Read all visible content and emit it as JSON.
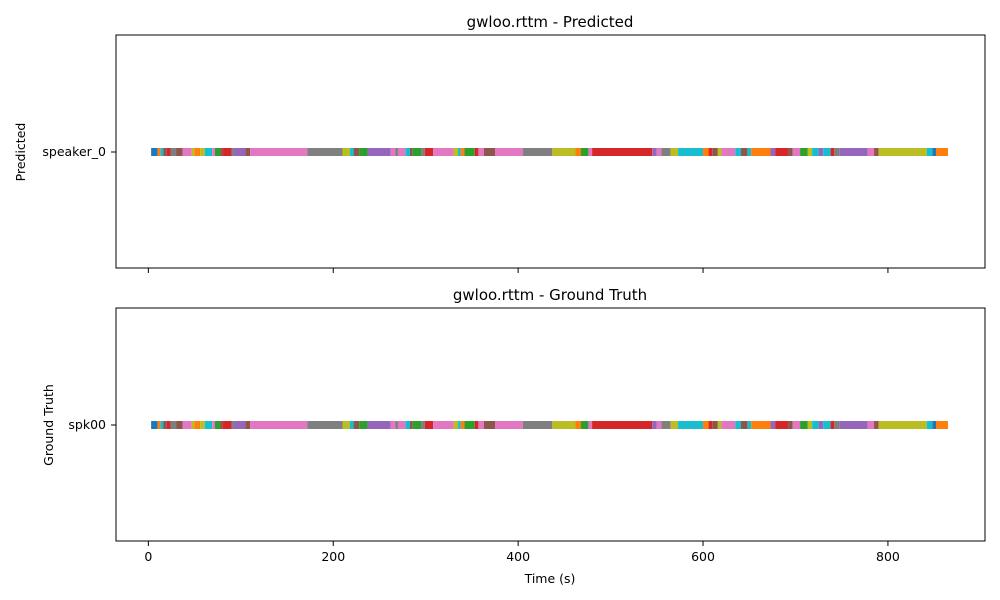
{
  "palette": [
    "#1f77b4",
    "#ff7f0e",
    "#2ca02c",
    "#d62728",
    "#9467bd",
    "#8c564b",
    "#e377c2",
    "#7f7f7f",
    "#bcbd22",
    "#17becf"
  ],
  "chart_data": [
    {
      "type": "timeline",
      "title": "gwloo.rttm - Predicted",
      "ylabel": "Predicted",
      "xlabel": "",
      "xlim": [
        -35,
        905
      ],
      "xticks": [
        0,
        200,
        400,
        600,
        800
      ],
      "show_xtick_labels": false,
      "speaker": "speaker_0",
      "segments": [
        {
          "start": 3,
          "end": 10,
          "color": "#1f77b4"
        },
        {
          "start": 10,
          "end": 13,
          "color": "#ff7f0e"
        },
        {
          "start": 13,
          "end": 16,
          "color": "#17becf"
        },
        {
          "start": 16,
          "end": 20,
          "color": "#8c564b"
        },
        {
          "start": 20,
          "end": 24,
          "color": "#d62728"
        },
        {
          "start": 24,
          "end": 30,
          "color": "#7f7f7f"
        },
        {
          "start": 30,
          "end": 37,
          "color": "#8c564b"
        },
        {
          "start": 37,
          "end": 47,
          "color": "#e377c2"
        },
        {
          "start": 47,
          "end": 50,
          "color": "#bcbd22"
        },
        {
          "start": 50,
          "end": 56,
          "color": "#ff7f0e"
        },
        {
          "start": 56,
          "end": 61,
          "color": "#bcbd22"
        },
        {
          "start": 61,
          "end": 69,
          "color": "#17becf"
        },
        {
          "start": 69,
          "end": 72,
          "color": "#e377c2"
        },
        {
          "start": 72,
          "end": 78,
          "color": "#2ca02c"
        },
        {
          "start": 78,
          "end": 80,
          "color": "#8c564b"
        },
        {
          "start": 80,
          "end": 90,
          "color": "#d62728"
        },
        {
          "start": 90,
          "end": 92,
          "color": "#7f7f7f"
        },
        {
          "start": 92,
          "end": 105,
          "color": "#9467bd"
        },
        {
          "start": 105,
          "end": 110,
          "color": "#8c564b"
        },
        {
          "start": 110,
          "end": 172,
          "color": "#e377c2"
        },
        {
          "start": 172,
          "end": 210,
          "color": "#7f7f7f"
        },
        {
          "start": 210,
          "end": 218,
          "color": "#bcbd22"
        },
        {
          "start": 218,
          "end": 222,
          "color": "#17becf"
        },
        {
          "start": 222,
          "end": 228,
          "color": "#8c564b"
        },
        {
          "start": 228,
          "end": 237,
          "color": "#2ca02c"
        },
        {
          "start": 237,
          "end": 262,
          "color": "#9467bd"
        },
        {
          "start": 262,
          "end": 267,
          "color": "#e377c2"
        },
        {
          "start": 267,
          "end": 270,
          "color": "#7f7f7f"
        },
        {
          "start": 270,
          "end": 278,
          "color": "#e377c2"
        },
        {
          "start": 278,
          "end": 283,
          "color": "#17becf"
        },
        {
          "start": 283,
          "end": 286,
          "color": "#8c564b"
        },
        {
          "start": 286,
          "end": 295,
          "color": "#2ca02c"
        },
        {
          "start": 295,
          "end": 299,
          "color": "#7f7f7f"
        },
        {
          "start": 299,
          "end": 308,
          "color": "#d62728"
        },
        {
          "start": 308,
          "end": 330,
          "color": "#e377c2"
        },
        {
          "start": 330,
          "end": 335,
          "color": "#bcbd22"
        },
        {
          "start": 335,
          "end": 338,
          "color": "#17becf"
        },
        {
          "start": 338,
          "end": 342,
          "color": "#ff7f0e"
        },
        {
          "start": 342,
          "end": 353,
          "color": "#2ca02c"
        },
        {
          "start": 353,
          "end": 357,
          "color": "#d62728"
        },
        {
          "start": 357,
          "end": 363,
          "color": "#e377c2"
        },
        {
          "start": 363,
          "end": 375,
          "color": "#8c564b"
        },
        {
          "start": 375,
          "end": 405,
          "color": "#e377c2"
        },
        {
          "start": 405,
          "end": 437,
          "color": "#7f7f7f"
        },
        {
          "start": 437,
          "end": 462,
          "color": "#bcbd22"
        },
        {
          "start": 462,
          "end": 468,
          "color": "#ff7f0e"
        },
        {
          "start": 468,
          "end": 476,
          "color": "#2ca02c"
        },
        {
          "start": 476,
          "end": 480,
          "color": "#e377c2"
        },
        {
          "start": 480,
          "end": 545,
          "color": "#d62728"
        },
        {
          "start": 545,
          "end": 550,
          "color": "#9467bd"
        },
        {
          "start": 550,
          "end": 555,
          "color": "#e377c2"
        },
        {
          "start": 555,
          "end": 565,
          "color": "#7f7f7f"
        },
        {
          "start": 565,
          "end": 573,
          "color": "#bcbd22"
        },
        {
          "start": 573,
          "end": 600,
          "color": "#17becf"
        },
        {
          "start": 600,
          "end": 606,
          "color": "#ff7f0e"
        },
        {
          "start": 606,
          "end": 610,
          "color": "#d62728"
        },
        {
          "start": 610,
          "end": 616,
          "color": "#8c564b"
        },
        {
          "start": 616,
          "end": 620,
          "color": "#bcbd22"
        },
        {
          "start": 620,
          "end": 635,
          "color": "#e377c2"
        },
        {
          "start": 635,
          "end": 641,
          "color": "#17becf"
        },
        {
          "start": 641,
          "end": 648,
          "color": "#8c564b"
        },
        {
          "start": 648,
          "end": 652,
          "color": "#17becf"
        },
        {
          "start": 652,
          "end": 673,
          "color": "#ff7f0e"
        },
        {
          "start": 673,
          "end": 678,
          "color": "#9467bd"
        },
        {
          "start": 678,
          "end": 692,
          "color": "#d62728"
        },
        {
          "start": 692,
          "end": 697,
          "color": "#8c564b"
        },
        {
          "start": 697,
          "end": 705,
          "color": "#e377c2"
        },
        {
          "start": 705,
          "end": 713,
          "color": "#2ca02c"
        },
        {
          "start": 713,
          "end": 718,
          "color": "#bcbd22"
        },
        {
          "start": 718,
          "end": 725,
          "color": "#17becf"
        },
        {
          "start": 725,
          "end": 730,
          "color": "#9467bd"
        },
        {
          "start": 730,
          "end": 738,
          "color": "#17becf"
        },
        {
          "start": 738,
          "end": 742,
          "color": "#d62728"
        },
        {
          "start": 742,
          "end": 748,
          "color": "#7f7f7f"
        },
        {
          "start": 748,
          "end": 778,
          "color": "#9467bd"
        },
        {
          "start": 778,
          "end": 785,
          "color": "#e377c2"
        },
        {
          "start": 785,
          "end": 790,
          "color": "#8c564b"
        },
        {
          "start": 790,
          "end": 842,
          "color": "#bcbd22"
        },
        {
          "start": 842,
          "end": 848,
          "color": "#17becf"
        },
        {
          "start": 848,
          "end": 852,
          "color": "#1f77b4"
        },
        {
          "start": 852,
          "end": 865,
          "color": "#ff7f0e"
        }
      ]
    },
    {
      "type": "timeline",
      "title": "gwloo.rttm - Ground Truth",
      "ylabel": "Ground Truth",
      "xlabel": "Time (s)",
      "xlim": [
        -35,
        905
      ],
      "xticks": [
        0,
        200,
        400,
        600,
        800
      ],
      "show_xtick_labels": true,
      "speaker": "spk00",
      "segments": [
        {
          "start": 3,
          "end": 10,
          "color": "#1f77b4"
        },
        {
          "start": 10,
          "end": 13,
          "color": "#ff7f0e"
        },
        {
          "start": 13,
          "end": 16,
          "color": "#17becf"
        },
        {
          "start": 16,
          "end": 20,
          "color": "#8c564b"
        },
        {
          "start": 20,
          "end": 24,
          "color": "#d62728"
        },
        {
          "start": 24,
          "end": 30,
          "color": "#7f7f7f"
        },
        {
          "start": 30,
          "end": 37,
          "color": "#8c564b"
        },
        {
          "start": 37,
          "end": 47,
          "color": "#e377c2"
        },
        {
          "start": 47,
          "end": 50,
          "color": "#bcbd22"
        },
        {
          "start": 50,
          "end": 56,
          "color": "#ff7f0e"
        },
        {
          "start": 56,
          "end": 61,
          "color": "#bcbd22"
        },
        {
          "start": 61,
          "end": 69,
          "color": "#17becf"
        },
        {
          "start": 69,
          "end": 72,
          "color": "#e377c2"
        },
        {
          "start": 72,
          "end": 78,
          "color": "#2ca02c"
        },
        {
          "start": 78,
          "end": 80,
          "color": "#8c564b"
        },
        {
          "start": 80,
          "end": 90,
          "color": "#d62728"
        },
        {
          "start": 90,
          "end": 92,
          "color": "#7f7f7f"
        },
        {
          "start": 92,
          "end": 105,
          "color": "#9467bd"
        },
        {
          "start": 105,
          "end": 110,
          "color": "#8c564b"
        },
        {
          "start": 110,
          "end": 172,
          "color": "#e377c2"
        },
        {
          "start": 172,
          "end": 210,
          "color": "#7f7f7f"
        },
        {
          "start": 210,
          "end": 218,
          "color": "#bcbd22"
        },
        {
          "start": 218,
          "end": 222,
          "color": "#17becf"
        },
        {
          "start": 222,
          "end": 228,
          "color": "#8c564b"
        },
        {
          "start": 228,
          "end": 237,
          "color": "#2ca02c"
        },
        {
          "start": 237,
          "end": 262,
          "color": "#9467bd"
        },
        {
          "start": 262,
          "end": 267,
          "color": "#e377c2"
        },
        {
          "start": 267,
          "end": 270,
          "color": "#7f7f7f"
        },
        {
          "start": 270,
          "end": 278,
          "color": "#e377c2"
        },
        {
          "start": 278,
          "end": 283,
          "color": "#17becf"
        },
        {
          "start": 283,
          "end": 286,
          "color": "#8c564b"
        },
        {
          "start": 286,
          "end": 295,
          "color": "#2ca02c"
        },
        {
          "start": 295,
          "end": 299,
          "color": "#7f7f7f"
        },
        {
          "start": 299,
          "end": 308,
          "color": "#d62728"
        },
        {
          "start": 308,
          "end": 330,
          "color": "#e377c2"
        },
        {
          "start": 330,
          "end": 335,
          "color": "#bcbd22"
        },
        {
          "start": 335,
          "end": 338,
          "color": "#17becf"
        },
        {
          "start": 338,
          "end": 342,
          "color": "#ff7f0e"
        },
        {
          "start": 342,
          "end": 353,
          "color": "#2ca02c"
        },
        {
          "start": 353,
          "end": 357,
          "color": "#d62728"
        },
        {
          "start": 357,
          "end": 363,
          "color": "#e377c2"
        },
        {
          "start": 363,
          "end": 375,
          "color": "#8c564b"
        },
        {
          "start": 375,
          "end": 405,
          "color": "#e377c2"
        },
        {
          "start": 405,
          "end": 437,
          "color": "#7f7f7f"
        },
        {
          "start": 437,
          "end": 462,
          "color": "#bcbd22"
        },
        {
          "start": 462,
          "end": 468,
          "color": "#ff7f0e"
        },
        {
          "start": 468,
          "end": 476,
          "color": "#2ca02c"
        },
        {
          "start": 476,
          "end": 480,
          "color": "#e377c2"
        },
        {
          "start": 480,
          "end": 545,
          "color": "#d62728"
        },
        {
          "start": 545,
          "end": 550,
          "color": "#9467bd"
        },
        {
          "start": 550,
          "end": 555,
          "color": "#e377c2"
        },
        {
          "start": 555,
          "end": 565,
          "color": "#7f7f7f"
        },
        {
          "start": 565,
          "end": 573,
          "color": "#bcbd22"
        },
        {
          "start": 573,
          "end": 600,
          "color": "#17becf"
        },
        {
          "start": 600,
          "end": 606,
          "color": "#ff7f0e"
        },
        {
          "start": 606,
          "end": 610,
          "color": "#d62728"
        },
        {
          "start": 610,
          "end": 616,
          "color": "#8c564b"
        },
        {
          "start": 616,
          "end": 620,
          "color": "#bcbd22"
        },
        {
          "start": 620,
          "end": 635,
          "color": "#e377c2"
        },
        {
          "start": 635,
          "end": 641,
          "color": "#17becf"
        },
        {
          "start": 641,
          "end": 648,
          "color": "#8c564b"
        },
        {
          "start": 648,
          "end": 652,
          "color": "#17becf"
        },
        {
          "start": 652,
          "end": 673,
          "color": "#ff7f0e"
        },
        {
          "start": 673,
          "end": 678,
          "color": "#9467bd"
        },
        {
          "start": 678,
          "end": 692,
          "color": "#d62728"
        },
        {
          "start": 692,
          "end": 697,
          "color": "#8c564b"
        },
        {
          "start": 697,
          "end": 705,
          "color": "#e377c2"
        },
        {
          "start": 705,
          "end": 713,
          "color": "#2ca02c"
        },
        {
          "start": 713,
          "end": 718,
          "color": "#bcbd22"
        },
        {
          "start": 718,
          "end": 725,
          "color": "#17becf"
        },
        {
          "start": 725,
          "end": 730,
          "color": "#9467bd"
        },
        {
          "start": 730,
          "end": 738,
          "color": "#17becf"
        },
        {
          "start": 738,
          "end": 742,
          "color": "#d62728"
        },
        {
          "start": 742,
          "end": 748,
          "color": "#7f7f7f"
        },
        {
          "start": 748,
          "end": 778,
          "color": "#9467bd"
        },
        {
          "start": 778,
          "end": 785,
          "color": "#e377c2"
        },
        {
          "start": 785,
          "end": 790,
          "color": "#8c564b"
        },
        {
          "start": 790,
          "end": 842,
          "color": "#bcbd22"
        },
        {
          "start": 842,
          "end": 848,
          "color": "#17becf"
        },
        {
          "start": 848,
          "end": 852,
          "color": "#1f77b4"
        },
        {
          "start": 852,
          "end": 865,
          "color": "#ff7f0e"
        }
      ]
    }
  ]
}
